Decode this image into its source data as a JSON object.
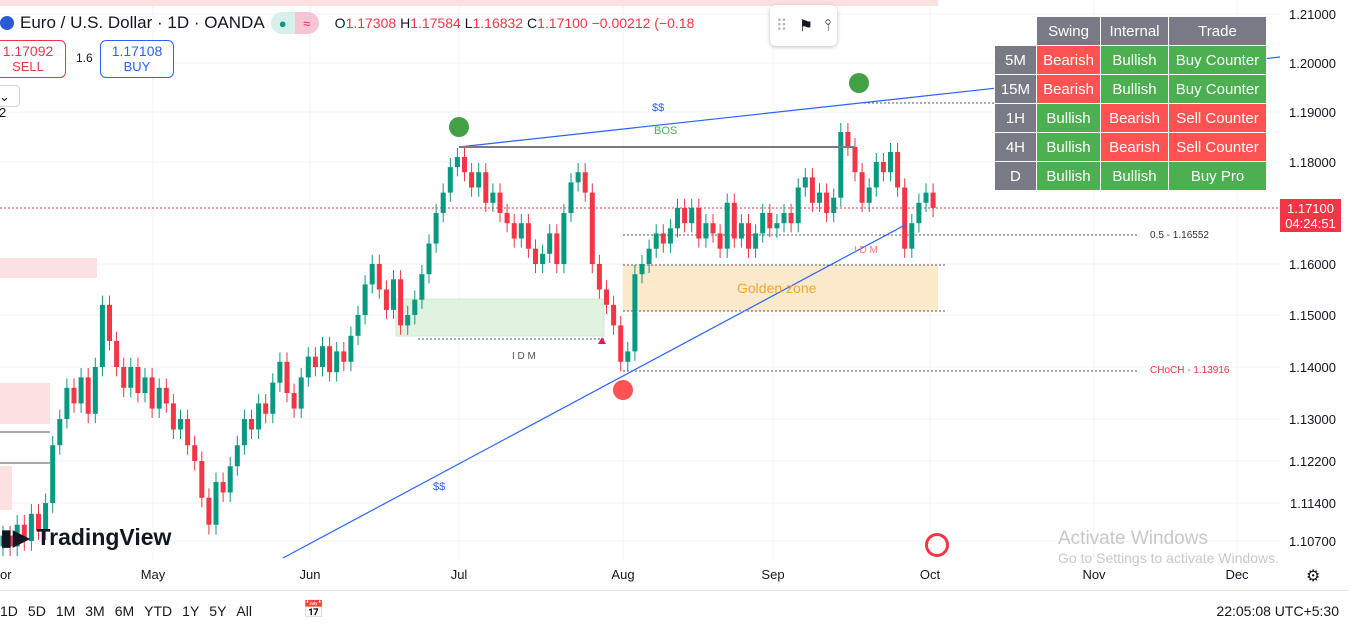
{
  "header": {
    "symbol": "Euro / U.S. Dollar · 1D · OANDA",
    "ohlc": [
      {
        "k": "O",
        "v": "1.17308"
      },
      {
        "k": "H",
        "v": "1.17584"
      },
      {
        "k": "L",
        "v": "1.16832"
      },
      {
        "k": "C",
        "v": "1.17100"
      }
    ],
    "change": "−0.00212 (−0.18"
  },
  "trade": {
    "sell_price": "1.17092",
    "sell_label": "SELL",
    "spread": "1.6",
    "buy_price": "1.17108",
    "buy_label": "BUY"
  },
  "indicators_toggle": "2",
  "table": {
    "headers": [
      "",
      "Swing",
      "Internal",
      "Trade"
    ],
    "rows": [
      [
        "5M",
        "Bearish",
        "Bullish",
        "Buy Counter"
      ],
      [
        "15M",
        "Bearish",
        "Bullish",
        "Buy Counter"
      ],
      [
        "1H",
        "Bullish",
        "Bearish",
        "Sell Counter"
      ],
      [
        "4H",
        "Bullish",
        "Bearish",
        "Sell Counter"
      ],
      [
        "D",
        "Bullish",
        "Bullish",
        "Buy Pro"
      ]
    ]
  },
  "annotations": {
    "ss_top": "$$",
    "bos": "BOS",
    "ss_bottom": "$$",
    "idm_1": "I D M",
    "idm_2": "I D M",
    "golden_zone": "Golden zone",
    "fib_label": "0.5 - 1.16552",
    "choch_label": "CHoCH - 1.13916"
  },
  "price_axis": {
    "ticks": [
      "1.21000",
      "1.20000",
      "1.19000",
      "1.18000",
      "1.16000",
      "1.15000",
      "1.14000",
      "1.13000",
      "1.12200",
      "1.11400",
      "1.10700"
    ],
    "current_price": "1.17100",
    "countdown": "04:24:51"
  },
  "time_axis": [
    "or",
    "May",
    "Jun",
    "Jul",
    "Aug",
    "Sep",
    "Oct",
    "Nov",
    "Dec"
  ],
  "bottom_bar": {
    "ranges": [
      "1D",
      "5D",
      "1M",
      "3M",
      "6M",
      "YTD",
      "1Y",
      "5Y",
      "All"
    ],
    "clock": "22:05:08 UTC+5:30"
  },
  "logo": "TradingView",
  "watermark": {
    "title": "Activate Windows",
    "subtitle": "Go to Settings to activate Windows."
  },
  "colors": {
    "up": "#089981",
    "down": "#f23645",
    "trendline": "#2962ff",
    "golden": "#fdeacc"
  },
  "chart_data": {
    "type": "candlestick",
    "timeframe": "1D",
    "closes": [
      1.108,
      1.106,
      1.11,
      1.107,
      1.112,
      1.109,
      1.114,
      1.125,
      1.13,
      1.136,
      1.133,
      1.138,
      1.131,
      1.14,
      1.152,
      1.145,
      1.14,
      1.136,
      1.14,
      1.135,
      1.138,
      1.132,
      1.136,
      1.133,
      1.128,
      1.13,
      1.125,
      1.122,
      1.115,
      1.11,
      1.118,
      1.116,
      1.121,
      1.125,
      1.13,
      1.128,
      1.133,
      1.131,
      1.137,
      1.141,
      1.135,
      1.132,
      1.138,
      1.142,
      1.14,
      1.144,
      1.139,
      1.143,
      1.141,
      1.146,
      1.15,
      1.156,
      1.16,
      1.155,
      1.151,
      1.157,
      1.148,
      1.15,
      1.153,
      1.158,
      1.164,
      1.17,
      1.174,
      1.179,
      1.181,
      1.178,
      1.175,
      1.178,
      1.172,
      1.174,
      1.17,
      1.168,
      1.165,
      1.168,
      1.163,
      1.16,
      1.162,
      1.166,
      1.16,
      1.17,
      1.176,
      1.178,
      1.174,
      1.16,
      1.155,
      1.152,
      1.148,
      1.141,
      1.143,
      1.158,
      1.16,
      1.163,
      1.166,
      1.164,
      1.167,
      1.171,
      1.168,
      1.171,
      1.165,
      1.168,
      1.166,
      1.163,
      1.172,
      1.165,
      1.168,
      1.163,
      1.166,
      1.17,
      1.167,
      1.168,
      1.17,
      1.168,
      1.175,
      1.177,
      1.172,
      1.174,
      1.17,
      1.173,
      1.186,
      1.183,
      1.178,
      1.172,
      1.175,
      1.18,
      1.178,
      1.182,
      1.175,
      1.163,
      1.168,
      1.172,
      1.174,
      1.171
    ],
    "y_ticks": [
      1.21,
      1.2,
      1.19,
      1.18,
      1.16,
      1.15,
      1.14,
      1.13,
      1.122,
      1.114,
      1.107
    ],
    "x_ticks": [
      "May",
      "Jun",
      "Jul",
      "Aug",
      "Sep",
      "Oct",
      "Nov",
      "Dec"
    ]
  }
}
